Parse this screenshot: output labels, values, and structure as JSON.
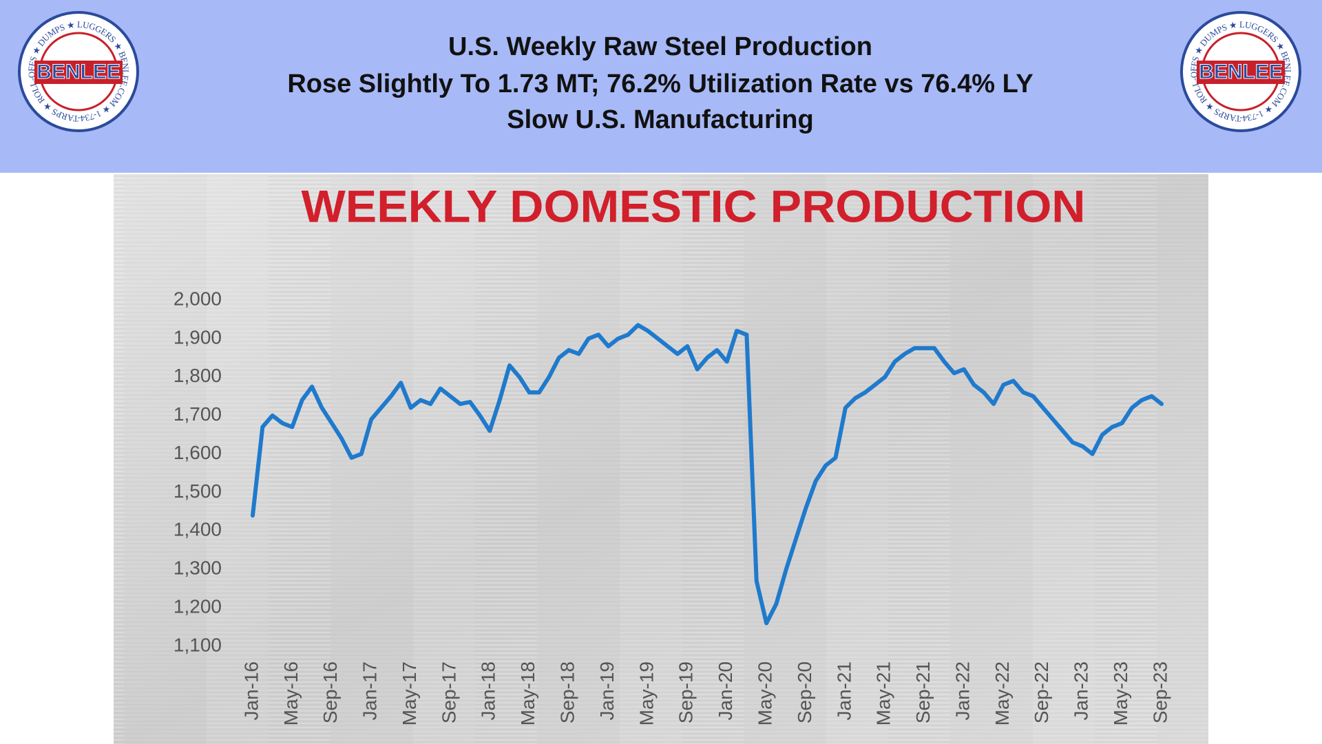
{
  "header": {
    "title_lines": [
      "U.S. Weekly Raw Steel Production",
      "Rose Slightly To 1.73 MT; 76.2% Utilization Rate vs 76.4% LY",
      "Slow U.S. Manufacturing"
    ],
    "logo": {
      "name": "BENLEE",
      "ring_text": "TARPS ★ ROLL-OFFS ★ DUMPS ★ LUGGERS ★ BENLEE.COM ★ 1-734-722-8100 ★ PARTS ★"
    }
  },
  "chart_data": {
    "type": "line",
    "title": "WEEKLY DOMESTIC PRODUCTION",
    "x": [
      "2016-01",
      "2016-02",
      "2016-03",
      "2016-04",
      "2016-05",
      "2016-06",
      "2016-07",
      "2016-08",
      "2016-09",
      "2016-10",
      "2016-11",
      "2016-12",
      "2017-01",
      "2017-02",
      "2017-03",
      "2017-04",
      "2017-05",
      "2017-06",
      "2017-07",
      "2017-08",
      "2017-09",
      "2017-10",
      "2017-11",
      "2017-12",
      "2018-01",
      "2018-02",
      "2018-03",
      "2018-04",
      "2018-05",
      "2018-06",
      "2018-07",
      "2018-08",
      "2018-09",
      "2018-10",
      "2018-11",
      "2018-12",
      "2019-01",
      "2019-02",
      "2019-03",
      "2019-04",
      "2019-05",
      "2019-06",
      "2019-07",
      "2019-08",
      "2019-09",
      "2019-10",
      "2019-11",
      "2019-12",
      "2020-01",
      "2020-02",
      "2020-03",
      "2020-04",
      "2020-05",
      "2020-06",
      "2020-07",
      "2020-08",
      "2020-09",
      "2020-10",
      "2020-11",
      "2020-12",
      "2021-01",
      "2021-02",
      "2021-03",
      "2021-04",
      "2021-05",
      "2021-06",
      "2021-07",
      "2021-08",
      "2021-09",
      "2021-10",
      "2021-11",
      "2021-12",
      "2022-01",
      "2022-02",
      "2022-03",
      "2022-04",
      "2022-05",
      "2022-06",
      "2022-07",
      "2022-08",
      "2022-09",
      "2022-10",
      "2022-11",
      "2022-12",
      "2023-01",
      "2023-02",
      "2023-03",
      "2023-04",
      "2023-05",
      "2023-06",
      "2023-07",
      "2023-08",
      "2023-09"
    ],
    "series": [
      {
        "name": "Weekly domestic production",
        "color": "#1f7acc",
        "values": [
          1440,
          1670,
          1700,
          1680,
          1670,
          1740,
          1775,
          1720,
          1680,
          1640,
          1590,
          1600,
          1690,
          1720,
          1750,
          1785,
          1720,
          1740,
          1730,
          1770,
          1750,
          1730,
          1735,
          1700,
          1660,
          1740,
          1830,
          1800,
          1760,
          1760,
          1800,
          1850,
          1870,
          1860,
          1900,
          1910,
          1880,
          1900,
          1910,
          1935,
          1920,
          1900,
          1880,
          1860,
          1880,
          1820,
          1850,
          1870,
          1840,
          1920,
          1910,
          1270,
          1160,
          1210,
          1300,
          1380,
          1460,
          1530,
          1570,
          1590,
          1720,
          1745,
          1760,
          1780,
          1800,
          1840,
          1860,
          1875,
          1875,
          1875,
          1840,
          1810,
          1820,
          1780,
          1760,
          1730,
          1780,
          1790,
          1760,
          1750,
          1720,
          1690,
          1660,
          1630,
          1620,
          1600,
          1650,
          1670,
          1680,
          1720,
          1740,
          1750,
          1730
        ]
      }
    ],
    "xlim": [
      "2016-01",
      "2023-09"
    ],
    "xticks": [
      {
        "value": "2016-01",
        "label": "Jan-16"
      },
      {
        "value": "2016-05",
        "label": "May-16"
      },
      {
        "value": "2016-09",
        "label": "Sep-16"
      },
      {
        "value": "2017-01",
        "label": "Jan-17"
      },
      {
        "value": "2017-05",
        "label": "May-17"
      },
      {
        "value": "2017-09",
        "label": "Sep-17"
      },
      {
        "value": "2018-01",
        "label": "Jan-18"
      },
      {
        "value": "2018-05",
        "label": "May-18"
      },
      {
        "value": "2018-09",
        "label": "Sep-18"
      },
      {
        "value": "2019-01",
        "label": "Jan-19"
      },
      {
        "value": "2019-05",
        "label": "May-19"
      },
      {
        "value": "2019-09",
        "label": "Sep-19"
      },
      {
        "value": "2020-01",
        "label": "Jan-20"
      },
      {
        "value": "2020-05",
        "label": "May-20"
      },
      {
        "value": "2020-09",
        "label": "Sep-20"
      },
      {
        "value": "2021-01",
        "label": "Jan-21"
      },
      {
        "value": "2021-05",
        "label": "May-21"
      },
      {
        "value": "2021-09",
        "label": "Sep-21"
      },
      {
        "value": "2022-01",
        "label": "Jan-22"
      },
      {
        "value": "2022-05",
        "label": "May-22"
      },
      {
        "value": "2022-09",
        "label": "Sep-22"
      },
      {
        "value": "2023-01",
        "label": "Jan-23"
      },
      {
        "value": "2023-05",
        "label": "May-23"
      },
      {
        "value": "2023-09",
        "label": "Sep-23"
      }
    ],
    "ylim": [
      1100,
      2000
    ],
    "yticks": [
      {
        "value": 1100,
        "label": "1,100"
      },
      {
        "value": 1200,
        "label": "1,200"
      },
      {
        "value": 1300,
        "label": "1,300"
      },
      {
        "value": 1400,
        "label": "1,400"
      },
      {
        "value": 1500,
        "label": "1,500"
      },
      {
        "value": 1600,
        "label": "1,600"
      },
      {
        "value": 1700,
        "label": "1,700"
      },
      {
        "value": 1800,
        "label": "1,800"
      },
      {
        "value": 1900,
        "label": "1,900"
      },
      {
        "value": 2000,
        "label": "2,000"
      }
    ],
    "grid": false
  }
}
